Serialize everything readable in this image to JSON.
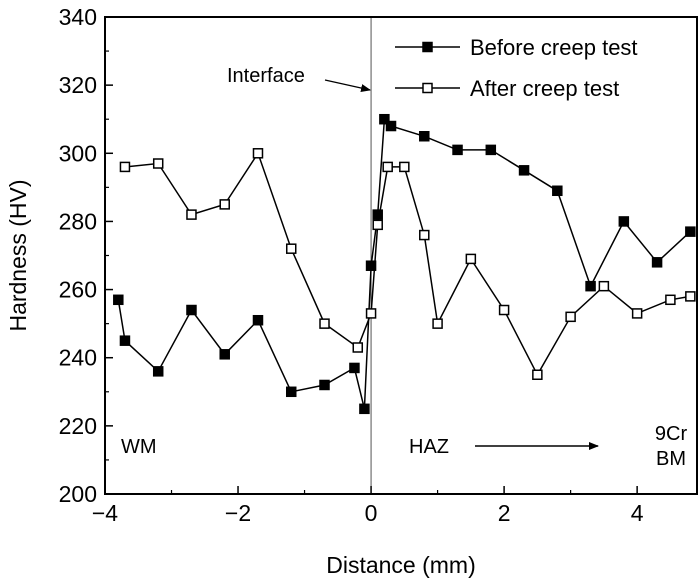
{
  "chart_data": {
    "type": "line",
    "title": "",
    "xlabel": "Distance (mm)",
    "ylabel": "Hardness (HV)",
    "xlim": [
      -4,
      4.9
    ],
    "ylim": [
      200,
      340
    ],
    "xticks": [
      -4,
      -2,
      0,
      2,
      4
    ],
    "yticks": [
      200,
      220,
      240,
      260,
      280,
      300,
      320,
      340
    ],
    "grid": false,
    "legend_position": "top-right",
    "series": [
      {
        "name": "Before creep test",
        "marker": "filled-square",
        "color": "#000000",
        "x": [
          -3.8,
          -3.7,
          -3.2,
          -2.7,
          -2.2,
          -1.7,
          -1.2,
          -0.7,
          -0.25,
          -0.1,
          0.0,
          0.1,
          0.2,
          0.3,
          0.8,
          1.3,
          1.8,
          2.3,
          2.8,
          3.3,
          3.8,
          4.3,
          4.8
        ],
        "y": [
          257,
          245,
          236,
          254,
          241,
          251,
          230,
          232,
          237,
          225,
          267,
          282,
          310,
          308,
          305,
          301,
          301,
          295,
          289,
          261,
          280,
          268,
          277
        ]
      },
      {
        "name": "After creep test",
        "marker": "open-square",
        "color": "#000000",
        "x": [
          -3.7,
          -3.2,
          -2.7,
          -2.2,
          -1.7,
          -1.2,
          -0.7,
          -0.2,
          0.0,
          0.1,
          0.25,
          0.5,
          0.8,
          1.0,
          1.5,
          2.0,
          2.5,
          3.0,
          3.5,
          4.0,
          4.5,
          4.8
        ],
        "y": [
          296,
          297,
          282,
          285,
          300,
          272,
          250,
          243,
          253,
          279,
          296,
          296,
          276,
          250,
          269,
          254,
          235,
          252,
          261,
          253,
          257,
          258
        ]
      }
    ],
    "annotations": {
      "interface_label": "Interface",
      "interface_x": 0,
      "wm_label": "WM",
      "haz_label": "HAZ",
      "bm_label_line1": "9Cr",
      "bm_label_line2": "BM"
    }
  }
}
